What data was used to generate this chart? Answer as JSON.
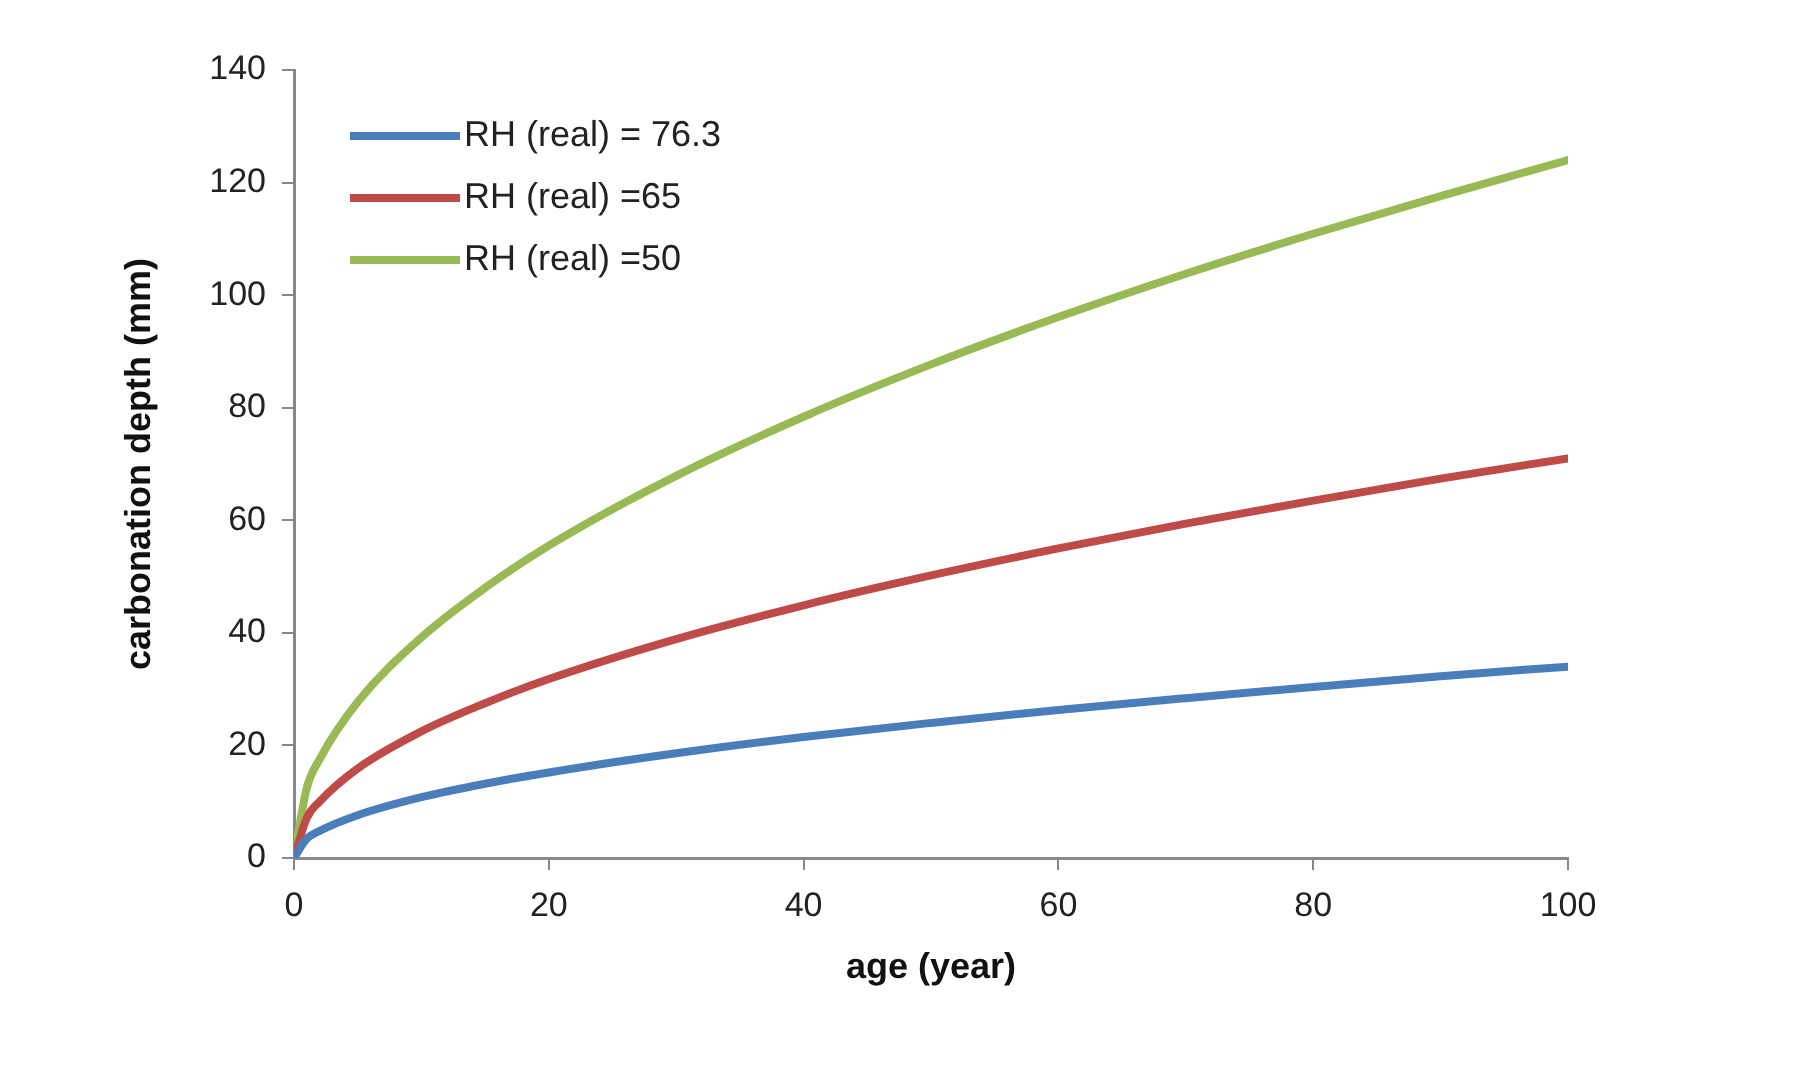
{
  "chart_data": {
    "type": "line",
    "xlabel": "age (year)",
    "ylabel": "carbonation depth (mm)",
    "x": [
      0,
      1,
      2,
      5,
      10,
      15,
      20,
      30,
      40,
      50,
      60,
      70,
      80,
      90,
      100
    ],
    "series": [
      {
        "name": "RH (real) = 76.3",
        "color": "#4a7ebb",
        "values": [
          0,
          3.4,
          4.8,
          7.6,
          10.8,
          13.2,
          15.2,
          18.6,
          21.5,
          24.0,
          26.3,
          28.4,
          30.4,
          32.3,
          34
        ]
      },
      {
        "name": "RH (real) =65",
        "color": "#be4b48",
        "values": [
          0,
          7.1,
          10.0,
          15.9,
          22.5,
          27.5,
          31.8,
          38.9,
          44.9,
          50.2,
          55.0,
          59.4,
          63.5,
          67.4,
          71
        ]
      },
      {
        "name": "RH (real) =50",
        "color": "#98b954",
        "values": [
          0,
          12.4,
          17.5,
          27.7,
          39.2,
          48.0,
          55.5,
          67.9,
          78.4,
          87.7,
          96.1,
          103.8,
          110.9,
          117.6,
          124
        ]
      }
    ],
    "xlim": [
      0,
      100
    ],
    "xticks": [
      0,
      20,
      40,
      60,
      80,
      100
    ],
    "ylim": [
      0,
      140
    ],
    "yticks": [
      0,
      20,
      40,
      60,
      80,
      100,
      120,
      140
    ],
    "grid": false,
    "legend": "top left",
    "marker": "none",
    "line_style": "solid"
  }
}
